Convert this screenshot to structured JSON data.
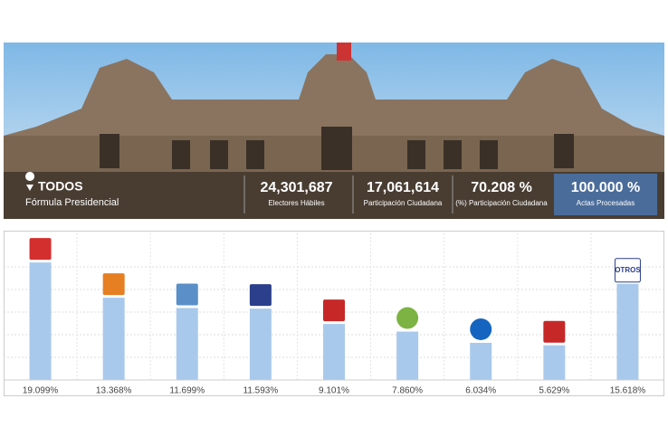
{
  "header": {
    "location": "TODOS",
    "subtitle": "Fórmula Presidencial",
    "stats": [
      {
        "value": "24,301,687",
        "label": "Electores Hábiles"
      },
      {
        "value": "17,061,614",
        "label": "Participación Ciudadana"
      },
      {
        "value": "70.208 %",
        "label": "(%) Participación Ciudadana"
      },
      {
        "value": "100.000 %",
        "label": "Actas Procesadas"
      }
    ]
  },
  "chart_data": {
    "type": "bar",
    "categories": [
      null,
      null,
      null,
      null,
      null,
      null,
      null,
      null,
      "OTROS"
    ],
    "values": [
      19.099,
      13.368,
      11.699,
      11.593,
      9.101,
      7.86,
      6.034,
      5.629,
      15.618
    ],
    "value_labels": [
      "19.099%",
      "13.368%",
      "11.699%",
      "11.593%",
      "9.101%",
      "7.860%",
      "6.034%",
      "5.629%",
      "15.618%"
    ],
    "color": "#a9c9ec"
  }
}
